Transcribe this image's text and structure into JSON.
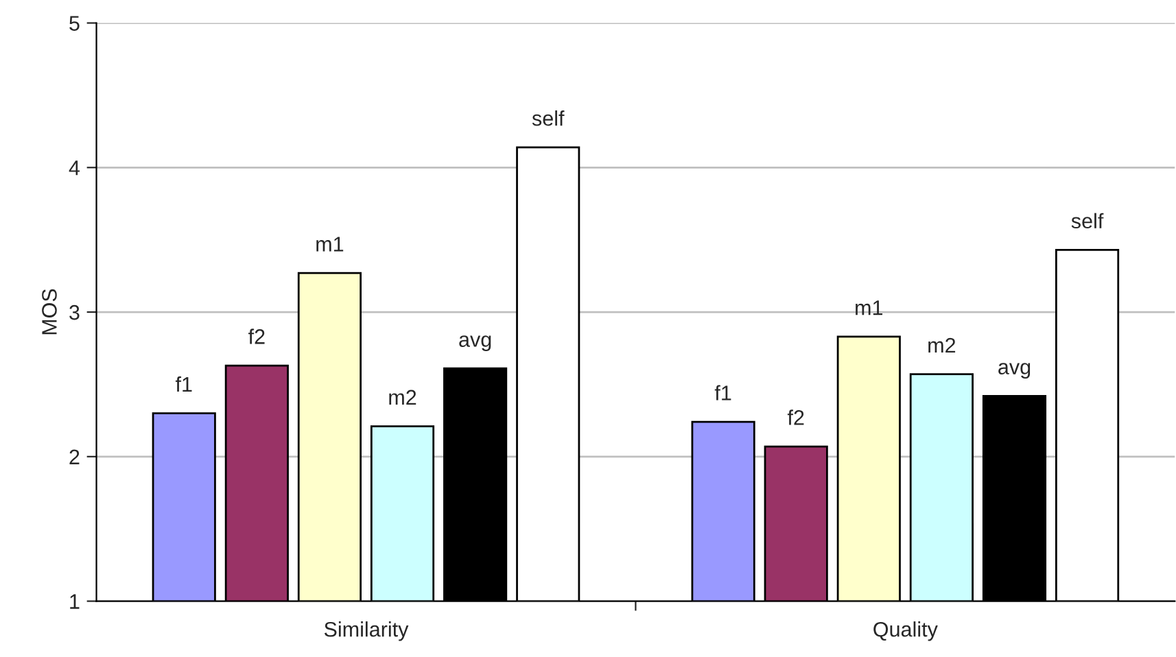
{
  "chart_data": {
    "type": "bar",
    "ylabel": "MOS",
    "categories": [
      "Similarity",
      "Quality"
    ],
    "series": [
      {
        "name": "f1",
        "color": "#9999ff",
        "values": [
          2.3,
          2.24
        ]
      },
      {
        "name": "f2",
        "color": "#993366",
        "values": [
          2.63,
          2.07
        ]
      },
      {
        "name": "m1",
        "color": "#ffffcc",
        "values": [
          3.27,
          2.83
        ]
      },
      {
        "name": "m2",
        "color": "#ccffff",
        "values": [
          2.21,
          2.57
        ]
      },
      {
        "name": "avg",
        "color": "#000000",
        "values": [
          2.61,
          2.42
        ]
      },
      {
        "name": "self",
        "color": "#ffffff",
        "values": [
          4.14,
          3.43
        ]
      }
    ],
    "ylim": [
      1,
      5
    ],
    "yticks": [
      1,
      2,
      3,
      4,
      5
    ],
    "grid": "y",
    "legend": false
  }
}
